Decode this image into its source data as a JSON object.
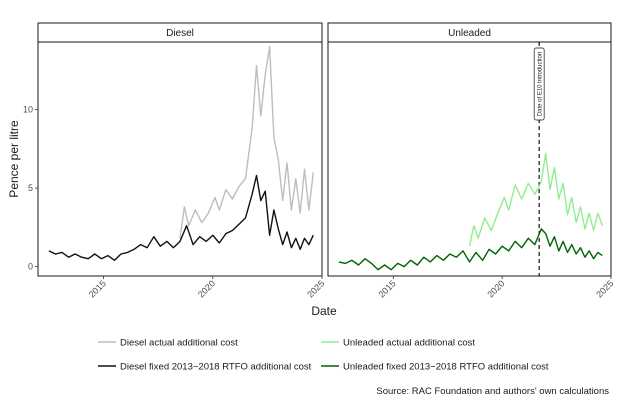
{
  "chart_data": {
    "type": "line",
    "xlabel": "Date",
    "ylabel": "Pence per litre",
    "x_ticks": [
      "2015",
      "2020",
      "2025"
    ],
    "y_ticks": [
      "0",
      "5",
      "10"
    ],
    "xlim": [
      2012.0,
      2025.0
    ],
    "ylim": [
      -0.6,
      14.3
    ],
    "legend_position": "bottom",
    "caption": "Source: RAC Foundation and authors' own calculations",
    "panels": [
      {
        "title": "Diesel",
        "series": [
          {
            "name": "Diesel actual additional cost",
            "color": "#bdbdbd",
            "points": [
              [
                2018.5,
                1.8
              ],
              [
                2018.7,
                3.8
              ],
              [
                2018.9,
                2.6
              ],
              [
                2019.2,
                3.6
              ],
              [
                2019.5,
                2.8
              ],
              [
                2019.8,
                3.4
              ],
              [
                2020.1,
                4.4
              ],
              [
                2020.3,
                3.6
              ],
              [
                2020.6,
                4.9
              ],
              [
                2020.9,
                4.3
              ],
              [
                2021.2,
                5.1
              ],
              [
                2021.5,
                5.6
              ],
              [
                2021.8,
                8.8
              ],
              [
                2022.0,
                12.8
              ],
              [
                2022.2,
                9.6
              ],
              [
                2022.4,
                12.2
              ],
              [
                2022.6,
                14.0
              ],
              [
                2022.8,
                8.2
              ],
              [
                2023.0,
                6.8
              ],
              [
                2023.2,
                4.2
              ],
              [
                2023.4,
                6.6
              ],
              [
                2023.6,
                3.6
              ],
              [
                2023.8,
                5.6
              ],
              [
                2024.0,
                3.4
              ],
              [
                2024.2,
                6.2
              ],
              [
                2024.4,
                3.6
              ],
              [
                2024.6,
                6.0
              ]
            ]
          },
          {
            "name": "Diesel fixed 2013−2018 RTFO additional cost",
            "color": "#111111",
            "points": [
              [
                2012.5,
                1.0
              ],
              [
                2012.8,
                0.8
              ],
              [
                2013.1,
                0.9
              ],
              [
                2013.4,
                0.6
              ],
              [
                2013.7,
                0.8
              ],
              [
                2014.0,
                0.6
              ],
              [
                2014.3,
                0.5
              ],
              [
                2014.6,
                0.8
              ],
              [
                2014.9,
                0.5
              ],
              [
                2015.2,
                0.7
              ],
              [
                2015.5,
                0.4
              ],
              [
                2015.8,
                0.8
              ],
              [
                2016.1,
                0.9
              ],
              [
                2016.4,
                1.1
              ],
              [
                2016.7,
                1.4
              ],
              [
                2017.0,
                1.2
              ],
              [
                2017.3,
                1.9
              ],
              [
                2017.6,
                1.3
              ],
              [
                2017.9,
                1.6
              ],
              [
                2018.2,
                1.2
              ],
              [
                2018.5,
                1.6
              ],
              [
                2018.8,
                2.6
              ],
              [
                2019.1,
                1.4
              ],
              [
                2019.4,
                1.9
              ],
              [
                2019.7,
                1.6
              ],
              [
                2020.0,
                2.0
              ],
              [
                2020.3,
                1.5
              ],
              [
                2020.6,
                2.1
              ],
              [
                2020.9,
                2.3
              ],
              [
                2021.2,
                2.7
              ],
              [
                2021.5,
                3.1
              ],
              [
                2021.8,
                4.6
              ],
              [
                2022.0,
                5.8
              ],
              [
                2022.2,
                4.2
              ],
              [
                2022.4,
                4.8
              ],
              [
                2022.6,
                2.0
              ],
              [
                2022.8,
                3.6
              ],
              [
                2023.0,
                2.4
              ],
              [
                2023.2,
                1.4
              ],
              [
                2023.4,
                2.2
              ],
              [
                2023.6,
                1.2
              ],
              [
                2023.8,
                1.8
              ],
              [
                2024.0,
                1.1
              ],
              [
                2024.2,
                1.8
              ],
              [
                2024.4,
                1.4
              ],
              [
                2024.6,
                2.0
              ]
            ]
          }
        ]
      },
      {
        "title": "Unleaded",
        "annotation": "Date of E10 introduction",
        "annotation_x": 2021.7,
        "series": [
          {
            "name": "Unleaded actual additional cost",
            "color": "#90ee90",
            "points": [
              [
                2018.5,
                1.3
              ],
              [
                2018.7,
                2.6
              ],
              [
                2018.9,
                1.8
              ],
              [
                2019.2,
                3.1
              ],
              [
                2019.5,
                2.3
              ],
              [
                2019.8,
                3.4
              ],
              [
                2020.1,
                4.4
              ],
              [
                2020.3,
                3.6
              ],
              [
                2020.6,
                5.2
              ],
              [
                2020.9,
                4.3
              ],
              [
                2021.2,
                5.3
              ],
              [
                2021.5,
                4.6
              ],
              [
                2021.8,
                5.4
              ],
              [
                2022.0,
                7.2
              ],
              [
                2022.2,
                4.9
              ],
              [
                2022.4,
                6.3
              ],
              [
                2022.6,
                4.3
              ],
              [
                2022.8,
                5.3
              ],
              [
                2023.0,
                3.3
              ],
              [
                2023.2,
                4.4
              ],
              [
                2023.4,
                2.8
              ],
              [
                2023.6,
                3.8
              ],
              [
                2023.8,
                2.4
              ],
              [
                2024.0,
                3.4
              ],
              [
                2024.2,
                2.3
              ],
              [
                2024.4,
                3.4
              ],
              [
                2024.6,
                2.6
              ]
            ]
          },
          {
            "name": "Unleaded fixed 2013−2018 RTFO additional cost",
            "color": "#006400",
            "points": [
              [
                2012.5,
                0.3
              ],
              [
                2012.8,
                0.2
              ],
              [
                2013.1,
                0.4
              ],
              [
                2013.4,
                0.1
              ],
              [
                2013.7,
                0.5
              ],
              [
                2014.0,
                0.2
              ],
              [
                2014.3,
                -0.2
              ],
              [
                2014.6,
                0.1
              ],
              [
                2014.9,
                -0.2
              ],
              [
                2015.2,
                0.2
              ],
              [
                2015.5,
                0.0
              ],
              [
                2015.8,
                0.4
              ],
              [
                2016.1,
                0.1
              ],
              [
                2016.4,
                0.6
              ],
              [
                2016.7,
                0.3
              ],
              [
                2017.0,
                0.7
              ],
              [
                2017.3,
                0.4
              ],
              [
                2017.6,
                0.8
              ],
              [
                2017.9,
                0.6
              ],
              [
                2018.2,
                1.0
              ],
              [
                2018.5,
                0.3
              ],
              [
                2018.8,
                0.9
              ],
              [
                2019.1,
                0.4
              ],
              [
                2019.4,
                1.1
              ],
              [
                2019.7,
                0.8
              ],
              [
                2020.0,
                1.3
              ],
              [
                2020.3,
                1.0
              ],
              [
                2020.6,
                1.6
              ],
              [
                2020.9,
                1.2
              ],
              [
                2021.2,
                1.8
              ],
              [
                2021.5,
                1.4
              ],
              [
                2021.8,
                2.4
              ],
              [
                2022.0,
                2.1
              ],
              [
                2022.2,
                1.3
              ],
              [
                2022.4,
                1.9
              ],
              [
                2022.6,
                1.0
              ],
              [
                2022.8,
                1.6
              ],
              [
                2023.0,
                0.9
              ],
              [
                2023.2,
                1.4
              ],
              [
                2023.4,
                0.8
              ],
              [
                2023.6,
                1.2
              ],
              [
                2023.8,
                0.6
              ],
              [
                2024.0,
                1.0
              ],
              [
                2024.2,
                0.5
              ],
              [
                2024.4,
                0.9
              ],
              [
                2024.6,
                0.7
              ]
            ]
          }
        ]
      }
    ]
  }
}
